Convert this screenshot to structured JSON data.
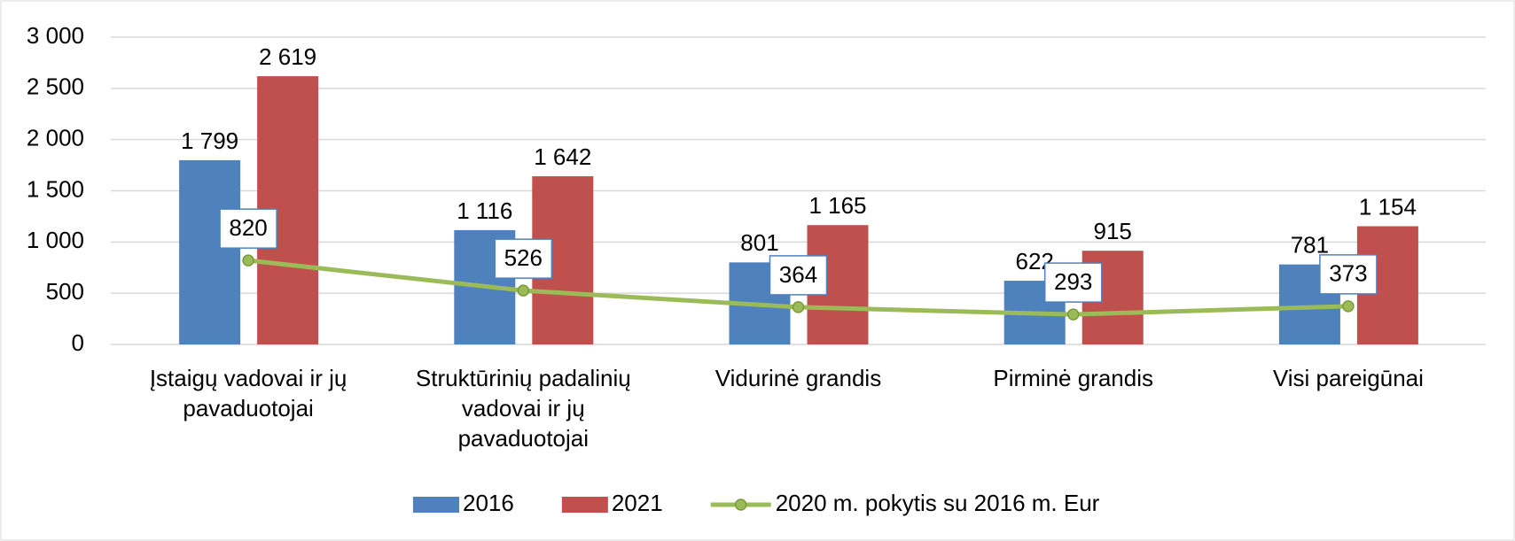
{
  "chart_data": {
    "type": "bar",
    "categories": [
      "Įstaigų vadovai ir jų pavaduotojai",
      "Struktūrinių padalinių vadovai ir jų pavaduotojai",
      "Vidurinė grandis",
      "Pirminė grandis",
      "Visi pareigūnai"
    ],
    "series": [
      {
        "name": "2016",
        "color": "#4f81bd",
        "type": "bar",
        "values": [
          1799,
          1116,
          801,
          622,
          781
        ],
        "value_labels": [
          "1 799",
          "1 116",
          "801",
          "622",
          "781"
        ]
      },
      {
        "name": "2021",
        "color": "#c0504d",
        "type": "bar",
        "values": [
          2619,
          1642,
          1165,
          915,
          1154
        ],
        "value_labels": [
          "2 619",
          "1 642",
          "1 165",
          "915",
          "1 154"
        ]
      },
      {
        "name": "2020 m. pokytis su 2016 m. Eur",
        "color": "#9bbb59",
        "type": "line",
        "values": [
          820,
          526,
          364,
          293,
          373
        ]
      }
    ],
    "ylim": [
      0,
      3000
    ],
    "yticks": [
      0,
      500,
      {
        "value": 1000,
        "label": "1 000"
      },
      {
        "value": 1500,
        "label": "1 500"
      },
      {
        "value": 2000,
        "label": "2 000"
      },
      {
        "value": 2500,
        "label": "2 500"
      },
      {
        "value": 3000,
        "label": "3 000"
      }
    ],
    "grid": true,
    "legend": "bottom"
  }
}
